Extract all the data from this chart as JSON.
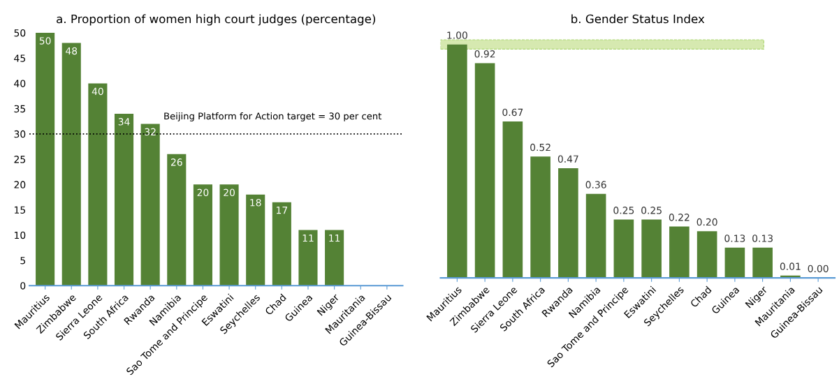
{
  "chart_data": [
    {
      "type": "bar",
      "title": "a. Proportion of women high court judges (percentage)",
      "categories": [
        "Mauritius",
        "Zimbabwe",
        "Sierra Leone",
        "South Africa",
        "Rwanda",
        "Namibia",
        "Sao Tome and Principe",
        "Eswatini",
        "Seychelles",
        "Chad",
        "Guinea",
        "Niger",
        "Mauritania",
        "Guinea-Bissau"
      ],
      "values": [
        50,
        48,
        40,
        34,
        32,
        26,
        20,
        20,
        18,
        16.5,
        11,
        11,
        0,
        0
      ],
      "value_labels": [
        "50",
        "48",
        "40",
        "34",
        "32",
        "26",
        "20",
        "20",
        "18",
        "17",
        "11",
        "11",
        null,
        null
      ],
      "color": "#548235",
      "ylim": [
        0,
        50
      ],
      "yticks": [
        0,
        5,
        10,
        15,
        20,
        25,
        30,
        35,
        40,
        45,
        50
      ],
      "grid": false,
      "legend": false,
      "ref_lines": [
        {
          "axis": "y",
          "value": 30,
          "label": "Beijing Platform for Action target = 30 per cent",
          "color": "#000000",
          "line_style": "dotted"
        }
      ]
    },
    {
      "type": "bar",
      "title": "b. Gender Status Index",
      "categories": [
        "Mauritius",
        "Zimbabwe",
        "Sierra Leone",
        "South Africa",
        "Rwanda",
        "Namibia",
        "Sao Tome and Principe",
        "Eswatini",
        "Seychelles",
        "Chad",
        "Guinea",
        "Niger",
        "Mauritania",
        "Guinea-Bissau"
      ],
      "values": [
        1.0,
        0.92,
        0.67,
        0.52,
        0.47,
        0.36,
        0.25,
        0.25,
        0.22,
        0.2,
        0.13,
        0.13,
        0.01,
        0.0
      ],
      "value_labels": [
        "1.00",
        "0.92",
        "0.67",
        "0.52",
        "0.47",
        "0.36",
        "0.25",
        "0.25",
        "0.22",
        "0.20",
        "0.13",
        "0.13",
        "0.01",
        "0.00"
      ],
      "color": "#548235",
      "tick_labels": "x",
      "grid": false,
      "legend": false,
      "bands": [
        {
          "axis": "y",
          "from": 0.98,
          "to": 1.02,
          "label": null,
          "color": "#c5e08f"
        }
      ]
    }
  ]
}
